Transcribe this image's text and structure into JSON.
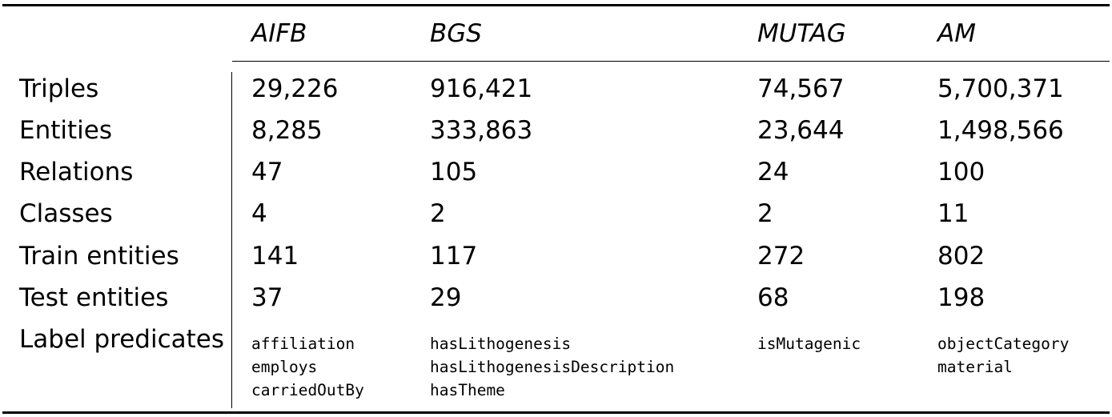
{
  "table": {
    "columns": [
      "AIFB",
      "BGS",
      "MUTAG",
      "AM"
    ],
    "rows": [
      {
        "label": "Triples",
        "values": [
          "29,226",
          "916,421",
          "74,567",
          "5,700,371"
        ]
      },
      {
        "label": "Entities",
        "values": [
          "8,285",
          "333,863",
          "23,644",
          "1,498,566"
        ]
      },
      {
        "label": "Relations",
        "values": [
          "47",
          "105",
          "24",
          "100"
        ]
      },
      {
        "label": "Classes",
        "values": [
          "4",
          "2",
          "2",
          "11"
        ]
      },
      {
        "label": "Train entities",
        "values": [
          "141",
          "117",
          "272",
          "802"
        ]
      },
      {
        "label": "Test entities",
        "values": [
          "37",
          "29",
          "68",
          "198"
        ]
      }
    ],
    "label_predicates": {
      "label": "Label predicates",
      "values": [
        [
          "affiliation",
          "employs",
          "carriedOutBy"
        ],
        [
          "hasLithogenesis",
          "hasLithogenesisDescription",
          "hasTheme"
        ],
        [
          "isMutagenic"
        ],
        [
          "objectCategory",
          "material"
        ]
      ]
    }
  }
}
